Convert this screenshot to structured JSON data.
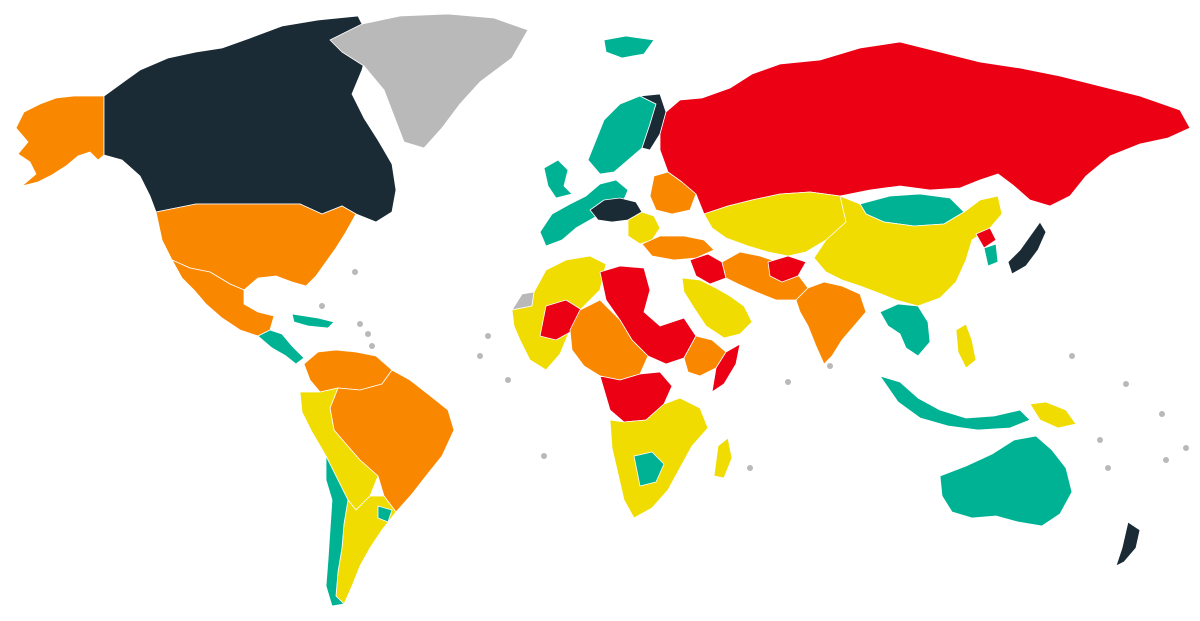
{
  "map": {
    "type": "world choropleth",
    "background": "#ffffff",
    "border_color": "#ffffff",
    "palette": {
      "very_good": "#1a2b35",
      "good": "#00b294",
      "fair": "#f0dc00",
      "poor": "#fa8700",
      "very_poor": "#eb0014",
      "no_data": "#b9b9b9"
    },
    "regions": {
      "canada": "very_good",
      "alaska": "poor",
      "usa": "poor",
      "mexico": "poor",
      "greenland": "no_data",
      "central_america": "good",
      "caribbean": "good",
      "colombia_venezuela": "poor",
      "brazil": "poor",
      "andes": "fair",
      "argentina": "fair",
      "chile_coast": "good",
      "uruguay": "good",
      "iceland": "good",
      "scandinavia": "good",
      "finland": "very_good",
      "uk_ireland": "good",
      "western_europe": "good",
      "central_europe": "very_good",
      "eastern_europe": "fair",
      "belarus_ukraine": "poor",
      "russia": "very_poor",
      "turkey": "poor",
      "middle_east": "fair",
      "syria_iraq": "very_poor",
      "iran_pakistan": "poor",
      "afghanistan": "very_poor",
      "india": "poor",
      "central_asia": "fair",
      "mongolia": "good",
      "china": "fair",
      "japan": "very_good",
      "korea": "good",
      "north_korea": "very_poor",
      "southeast_asia": "good",
      "philippines": "fair",
      "indonesia": "good",
      "papua": "fair",
      "australia": "good",
      "new_zealand": "very_good",
      "west_africa_sahel": "fair",
      "mali_niger_chad": "very_poor",
      "central_africa": "poor",
      "sudan_libya": "very_poor",
      "horn_of_africa": "poor",
      "somalia": "very_poor",
      "drc": "very_poor",
      "southern_africa": "fair",
      "botswana_namibia": "good",
      "madagascar": "fair",
      "western_sahara": "no_data"
    }
  }
}
